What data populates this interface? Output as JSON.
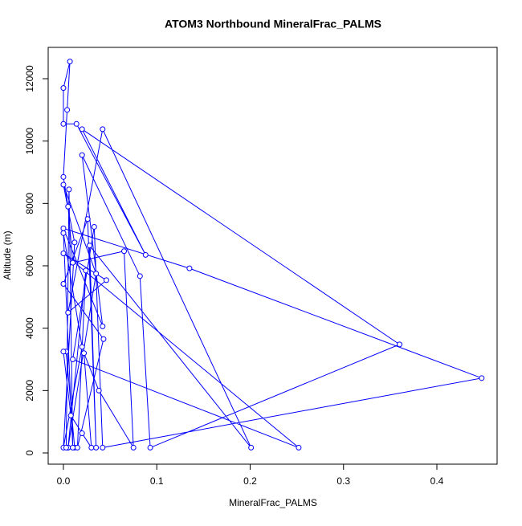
{
  "chart_data": {
    "type": "line",
    "title": "ATOM3 Northbound MineralFrac_PALMS",
    "x_label": "MineralFrac_PALMS",
    "y_label": "Altitude (m)",
    "color": "#0000ff",
    "markers": "open-circle",
    "x": [
      0.005,
      0.012,
      0.003,
      0.0,
      0.008,
      0.02,
      0.03,
      0.022,
      0.038,
      0.075,
      0.065,
      0.01,
      0.005,
      0.0,
      0.004,
      0.007,
      0.0,
      0.0,
      0.014,
      0.088,
      0.02,
      0.36,
      0.093,
      0.082,
      0.02,
      0.042,
      0.0,
      0.135,
      0.448,
      0.042,
      0.033,
      0.01,
      0.252,
      0.0,
      0.046,
      0.005,
      0.042,
      0.201,
      0.028,
      0.035,
      0.026,
      0.0,
      0.043,
      0.015,
      0.024,
      0.005,
      0.035,
      0.0,
      0.012,
      0.0,
      0.02,
      0.0,
      0.01,
      0.006,
      0.003
    ],
    "values": [
      170,
      170,
      3250,
      3250,
      1200,
      630,
      170,
      3200,
      2000,
      170,
      6470,
      6100,
      7900,
      8850,
      11000,
      12550,
      11700,
      10550,
      10550,
      6350,
      10380,
      3480,
      170,
      5670,
      9550,
      4060,
      7200,
      5920,
      2400,
      170,
      7250,
      3000,
      170,
      6400,
      5540,
      4500,
      10380,
      170,
      6650,
      170,
      7500,
      5420,
      3650,
      170,
      5850,
      170,
      5750,
      8600,
      6750,
      170,
      3400,
      7050,
      170,
      8450,
      170
    ],
    "xlim": [
      -0.0163,
      0.4645
    ],
    "ylim": [
      -360,
      13004
    ],
    "xticks": [
      {
        "value": 0,
        "label": "0.0"
      },
      0.1,
      0.2,
      0.3,
      0.4
    ],
    "yticks": [
      0,
      2000,
      4000,
      6000,
      8000,
      10000,
      12000
    ]
  }
}
